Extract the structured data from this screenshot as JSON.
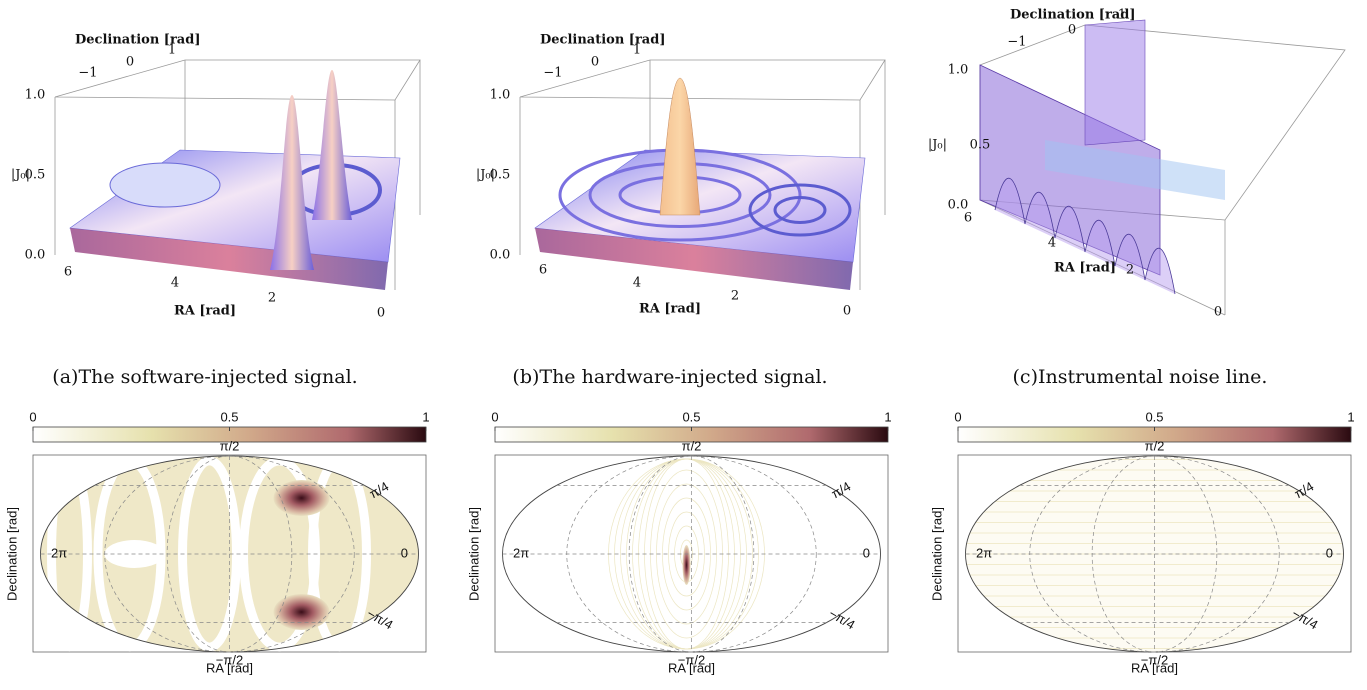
{
  "panels_3d": [
    {
      "caption": "(a)The software-injected signal.",
      "declination_label": "Declination [rad]",
      "declination_ticks": [
        "−1",
        "0",
        "1"
      ],
      "z_label": "|J₀|",
      "z_ticks": [
        "1.0",
        "0.5",
        "0.0"
      ],
      "ra_label": "RA [rad]",
      "ra_ticks": [
        "6",
        "4",
        "2",
        "0"
      ]
    },
    {
      "caption": "(b)The hardware-injected signal.",
      "declination_label": "Declination [rad]",
      "declination_ticks": [
        "−1",
        "0",
        "1"
      ],
      "z_label": "|J₀|",
      "z_ticks": [
        "1.0",
        "0.5",
        "0.0"
      ],
      "ra_label": "RA [rad]",
      "ra_ticks": [
        "6",
        "4",
        "2",
        "0"
      ]
    },
    {
      "caption": "(c)Instrumental noise line.",
      "declination_label": "Declination [rad]",
      "declination_ticks": [
        "−1",
        "0",
        "1"
      ],
      "z_label": "|J₀|",
      "z_ticks": [
        "1.0",
        "0.5",
        "0.0"
      ],
      "ra_label": "RA [rad]",
      "ra_ticks": [
        "6",
        "4",
        "2",
        "0"
      ]
    }
  ],
  "maps": [
    {
      "colorbar_ticks": [
        "0",
        "0.5",
        "1"
      ],
      "lat_labels": [
        "π/2",
        "π/4",
        "−π/4",
        "−π/2"
      ],
      "lon_labels": [
        "2π",
        "0"
      ],
      "ylabel": "Declination [rad]",
      "xlabel": "RA [rad]"
    },
    {
      "colorbar_ticks": [
        "0",
        "0.5",
        "1"
      ],
      "lat_labels": [
        "π/2",
        "π/4",
        "−π/4",
        "−π/2"
      ],
      "lon_labels": [
        "2π",
        "0"
      ],
      "ylabel": "Declination [rad]",
      "xlabel": "RA [rad]"
    },
    {
      "colorbar_ticks": [
        "0",
        "0.5",
        "1"
      ],
      "lat_labels": [
        "π/2",
        "π/4",
        "−π/4",
        "−π/2"
      ],
      "lon_labels": [
        "2π",
        "0"
      ],
      "ylabel": "Declination [rad]",
      "xlabel": "RA [rad]"
    }
  ]
}
